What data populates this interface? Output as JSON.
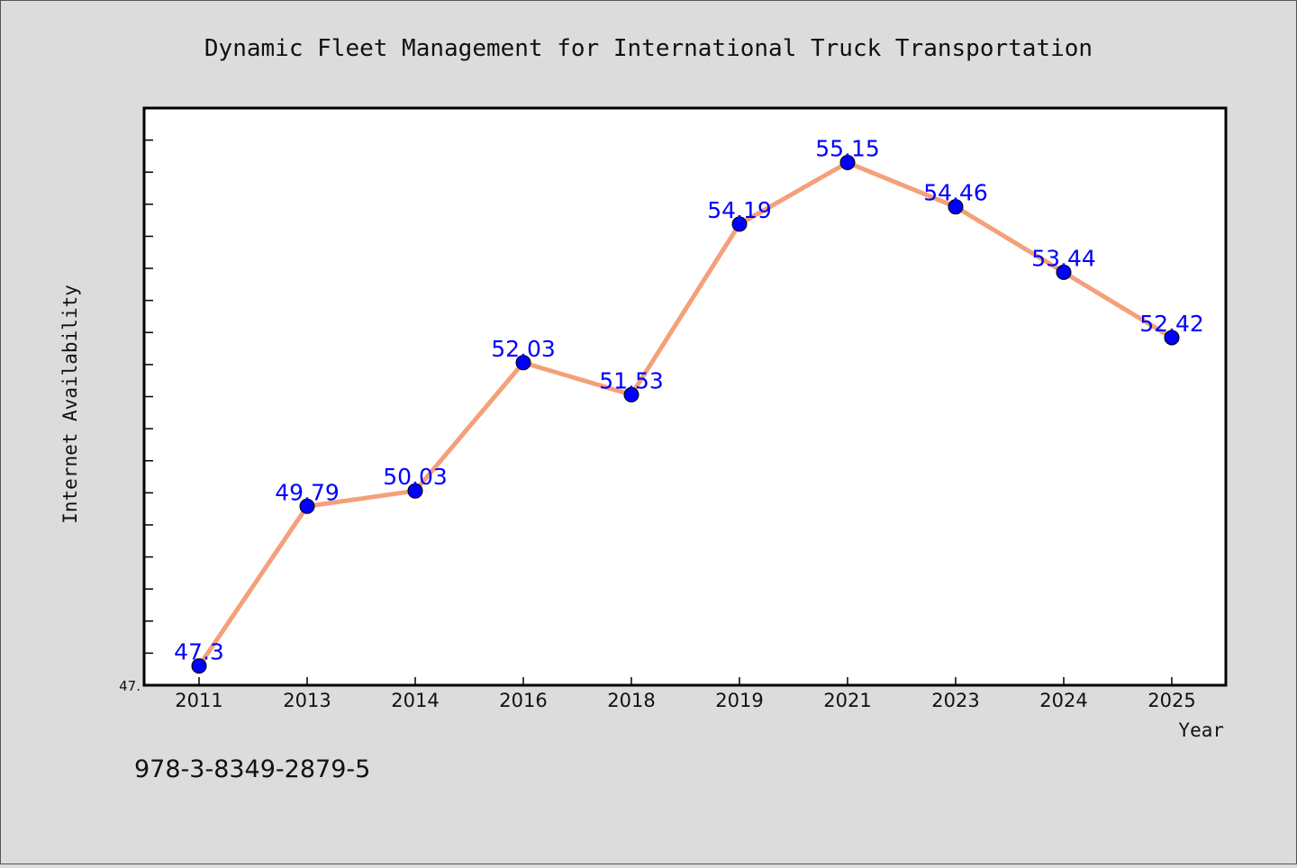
{
  "chart_data": {
    "type": "line",
    "title": "Dynamic Fleet Management for International Truck Transportation",
    "xlabel": "Year",
    "ylabel": "Internet Availability",
    "categories": [
      "2011",
      "2013",
      "2014",
      "2016",
      "2018",
      "2019",
      "2021",
      "2023",
      "2024",
      "2025"
    ],
    "series": [
      {
        "values": [
          47.3,
          49.79,
          50.03,
          52.03,
          51.53,
          54.19,
          55.15,
          54.46,
          53.44,
          52.42
        ],
        "labels": [
          "47.3",
          "49.79",
          "50.03",
          "52.03",
          "51.53",
          "54.19",
          "55.15",
          "54.46",
          "53.44",
          "52.42"
        ]
      }
    ],
    "ylim": [
      47.0,
      56.0
    ],
    "y_tick_label": "47.",
    "grid": false,
    "colors": {
      "line": "#f4a07a",
      "marker": "#0000ff",
      "label": "#0000ff",
      "background": "#dcdcdc",
      "plot_area": "#ffffff"
    }
  },
  "footer": {
    "isbn": "978-3-8349-2879-5"
  }
}
